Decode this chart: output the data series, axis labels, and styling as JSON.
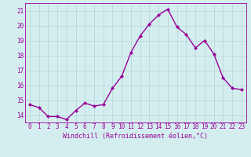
{
  "x": [
    0,
    1,
    2,
    3,
    4,
    5,
    6,
    7,
    8,
    9,
    10,
    11,
    12,
    13,
    14,
    15,
    16,
    17,
    18,
    19,
    20,
    21,
    22,
    23
  ],
  "y": [
    14.7,
    14.5,
    13.9,
    13.9,
    13.7,
    14.3,
    14.8,
    14.6,
    14.7,
    15.8,
    16.6,
    18.2,
    19.3,
    20.1,
    20.7,
    21.1,
    19.9,
    19.4,
    18.5,
    19.0,
    18.1,
    16.5,
    15.8,
    15.7
  ],
  "line_color": "#990099",
  "marker": "D",
  "marker_size": 2,
  "line_width": 1.0,
  "xlabel": "Windchill (Refroidissement éolien,°C)",
  "ylabel_ticks": [
    14,
    15,
    16,
    17,
    18,
    19,
    20,
    21
  ],
  "xlim": [
    -0.5,
    23.5
  ],
  "ylim": [
    13.5,
    21.5
  ],
  "bg_color": "#d4eef0",
  "grid_color": "#b8d8da",
  "tick_label_color": "#990099",
  "xlabel_color": "#990099",
  "tick_fontsize": 5.5,
  "xlabel_fontsize": 6.0
}
